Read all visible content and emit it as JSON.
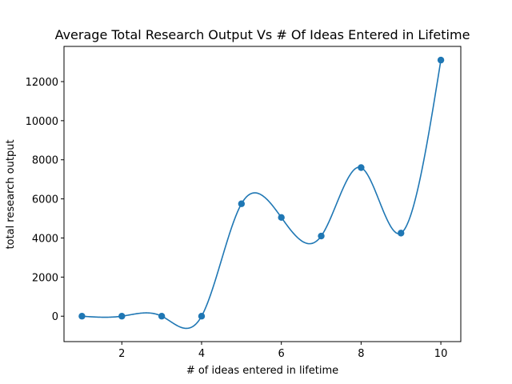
{
  "chart_data": {
    "type": "line",
    "title": "Average Total Research Output Vs # Of Ideas Entered in Lifetime",
    "xlabel": "# of ideas entered in lifetime",
    "ylabel": "total research output",
    "xlim": [
      0.55,
      10.5
    ],
    "ylim": [
      -1300,
      13800
    ],
    "xticks": [
      2,
      4,
      6,
      8,
      10
    ],
    "yticks": [
      0,
      2000,
      4000,
      6000,
      8000,
      10000,
      12000
    ],
    "grid": false,
    "smoothed_curve": true,
    "series": [
      {
        "x": [
          1,
          2,
          3,
          4,
          5,
          6,
          7,
          8,
          9,
          10
        ],
        "y": [
          0,
          0,
          0,
          0,
          5750,
          5050,
          4100,
          7600,
          4250,
          13100
        ],
        "color": "#1f77b4"
      }
    ]
  }
}
